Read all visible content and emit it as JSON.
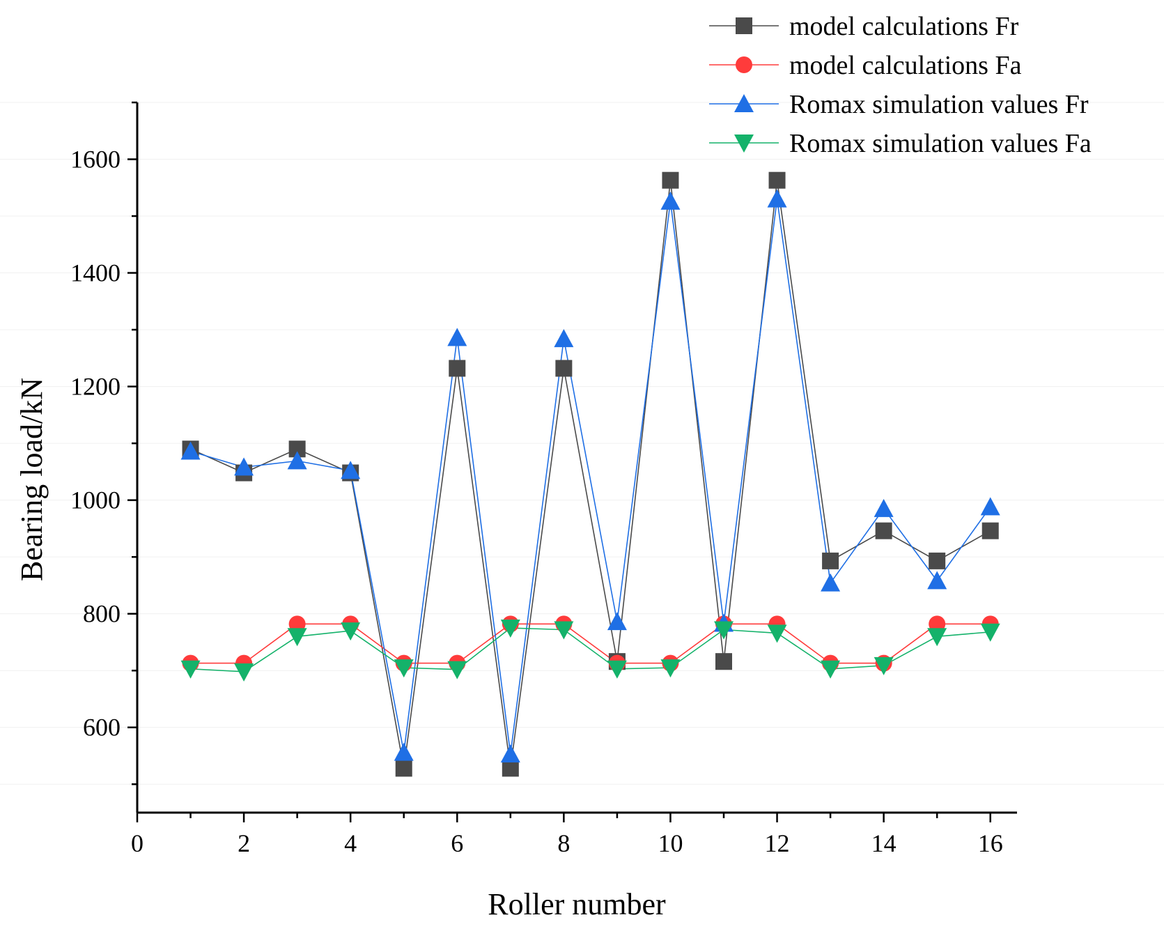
{
  "chart_data": {
    "type": "line",
    "title": "",
    "xlabel": "Roller number",
    "ylabel": "Bearing load/kN",
    "xlim": [
      0,
      16.5
    ],
    "ylim": [
      450,
      1700
    ],
    "xticks": [
      0,
      2,
      4,
      6,
      8,
      10,
      12,
      14,
      16
    ],
    "yticks": [
      600,
      800,
      1000,
      1200,
      1400,
      1600
    ],
    "x": [
      1,
      2,
      3,
      4,
      5,
      6,
      7,
      8,
      9,
      10,
      11,
      12,
      13,
      14,
      15,
      16
    ],
    "legend_position": "top-right",
    "series": [
      {
        "name": "model calculations Fr",
        "color": "#4a4a4a",
        "marker": "square",
        "values": [
          1090,
          1048,
          1090,
          1048,
          528,
          1232,
          528,
          1232,
          716,
          1563,
          716,
          1563,
          893,
          946,
          893,
          946
        ]
      },
      {
        "name": "model calculations Fa",
        "color": "#ff3b3b",
        "marker": "circle",
        "values": [
          713,
          713,
          782,
          782,
          713,
          713,
          782,
          782,
          713,
          713,
          782,
          782,
          713,
          713,
          782,
          782
        ]
      },
      {
        "name": "Romax simulation values Fr",
        "color": "#1f6fe5",
        "marker": "triangle-up",
        "values": [
          1086,
          1058,
          1069,
          1052,
          556,
          1286,
          553,
          1284,
          786,
          1526,
          783,
          1530,
          854,
          985,
          858,
          988
        ]
      },
      {
        "name": "Romax simulation values Fa",
        "color": "#14b26a",
        "marker": "triangle-down",
        "values": [
          703,
          698,
          760,
          770,
          705,
          702,
          775,
          772,
          703,
          705,
          772,
          766,
          703,
          709,
          760,
          768
        ]
      }
    ]
  }
}
